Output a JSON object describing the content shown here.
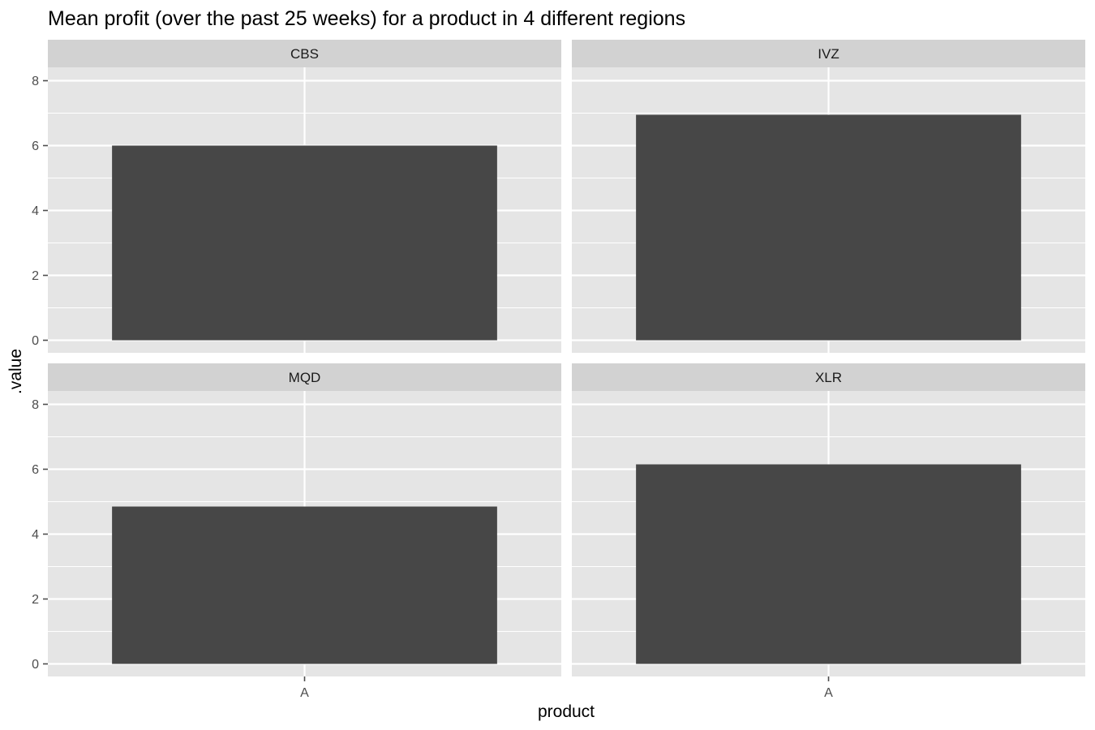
{
  "chart_data": {
    "type": "bar",
    "title": "Mean profit (over the past 25 weeks) for a product in 4 different regions",
    "xlabel": "product",
    "ylabel": ".value",
    "ylim": [
      0,
      8.5
    ],
    "yticks": [
      0,
      2,
      4,
      6,
      8
    ],
    "categories": [
      "A"
    ],
    "panels": [
      {
        "region": "CBS",
        "values": [
          6.0
        ]
      },
      {
        "region": "IVZ",
        "values": [
          6.95
        ]
      },
      {
        "region": "MQD",
        "values": [
          4.85
        ]
      },
      {
        "region": "XLR",
        "values": [
          6.15
        ]
      }
    ],
    "colors": {
      "panel_bg": "#e5e5e5",
      "strip_bg": "#d2d2d2",
      "bar": "#474747",
      "grid": "#ffffff",
      "tick": "#4d4d4d"
    }
  }
}
